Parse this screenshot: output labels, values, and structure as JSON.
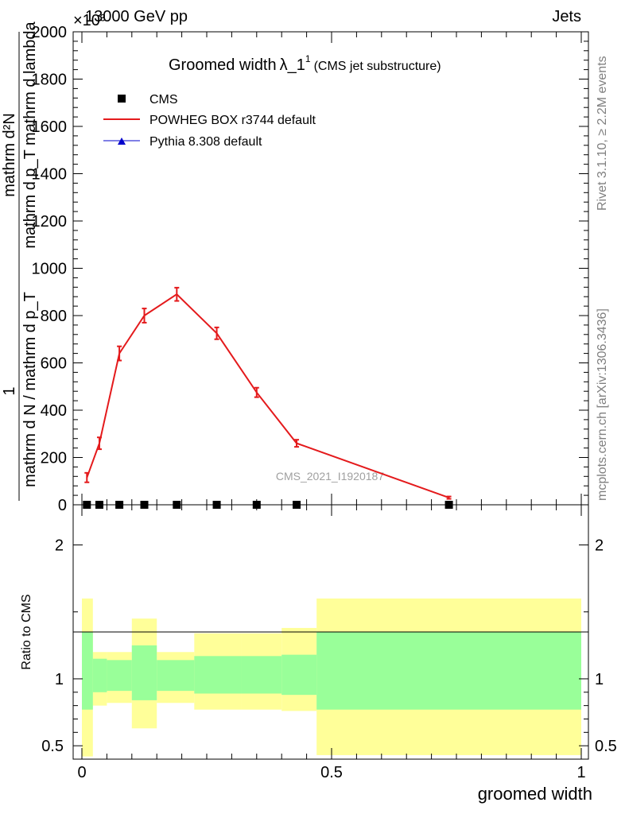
{
  "header": {
    "left": "13000 GeV pp",
    "right": "Jets",
    "exponent": "×10³"
  },
  "side": {
    "rivet": "Rivet 3.1.10, ≥ 2.2M events",
    "mcplots": "mcplots.cern.ch [arXiv:1306.3436]"
  },
  "watermark": "CMS_2021_I1920187",
  "chart_data": [
    {
      "type": "line",
      "title_main": "Groomed width",
      "title_lambda": "λ_1",
      "title_sup": "1",
      "title_sub": "(CMS jet substructure)",
      "ylabel_top": "1",
      "ylabel_num": "mathrm d²N",
      "ylabel_num2": "mathrm d p_T mathrm d lambda",
      "ylabel_den": "mathrm d N / mathrm d p_T",
      "xlim": [
        0,
        1
      ],
      "ylim": [
        0,
        2000
      ],
      "yticks": [
        "0",
        "200",
        "400",
        "600",
        "800",
        "1000",
        "1200",
        "1400",
        "1600",
        "1800",
        "2000"
      ],
      "legend": [
        {
          "name": "CMS",
          "color": "#000000",
          "marker": "square"
        },
        {
          "name": "POWHEG BOX r3744 default",
          "color": "#e41a1c",
          "marker": "line"
        },
        {
          "name": "Pythia 8.308 default",
          "color": "#0000cc",
          "marker": "triangle"
        }
      ],
      "series": [
        {
          "name": "CMS",
          "x": [
            0.01,
            0.035,
            0.075,
            0.125,
            0.19,
            0.27,
            0.35,
            0.43,
            0.735
          ],
          "y": [
            0,
            0,
            0,
            0,
            0,
            0,
            0,
            0,
            0
          ]
        },
        {
          "name": "POWHEG BOX r3744 default",
          "x": [
            0.01,
            0.035,
            0.075,
            0.125,
            0.19,
            0.27,
            0.35,
            0.43,
            0.735
          ],
          "y": [
            115,
            260,
            640,
            800,
            890,
            725,
            475,
            260,
            30
          ],
          "err": [
            20,
            25,
            30,
            30,
            28,
            25,
            20,
            15,
            5
          ]
        }
      ]
    },
    {
      "type": "area",
      "ylabel": "Ratio to CMS",
      "xlabel": "groomed width",
      "xlim": [
        0,
        1
      ],
      "ylim": [
        0.4,
        2.3
      ],
      "yticks": [
        "0.5",
        "1",
        "2"
      ],
      "xticks": [
        "0",
        "0.5",
        "1"
      ],
      "bins": [
        {
          "x0": 0.0,
          "x1": 0.022,
          "y_lo": 0.42,
          "y_hi": 1.6,
          "g_lo": 0.77,
          "g_hi": 1.35
        },
        {
          "x0": 0.022,
          "x1": 0.05,
          "y_lo": 0.8,
          "y_hi": 1.2,
          "g_lo": 0.9,
          "g_hi": 1.15
        },
        {
          "x0": 0.05,
          "x1": 0.1,
          "y_lo": 0.82,
          "y_hi": 1.2,
          "g_lo": 0.91,
          "g_hi": 1.14
        },
        {
          "x0": 0.1,
          "x1": 0.15,
          "y_lo": 0.63,
          "y_hi": 1.45,
          "g_lo": 0.84,
          "g_hi": 1.25
        },
        {
          "x0": 0.15,
          "x1": 0.225,
          "y_lo": 0.82,
          "y_hi": 1.2,
          "g_lo": 0.91,
          "g_hi": 1.14
        },
        {
          "x0": 0.225,
          "x1": 0.32,
          "y_lo": 0.77,
          "y_hi": 1.34,
          "g_lo": 0.89,
          "g_hi": 1.17
        },
        {
          "x0": 0.32,
          "x1": 0.4,
          "y_lo": 0.77,
          "y_hi": 1.34,
          "g_lo": 0.89,
          "g_hi": 1.17
        },
        {
          "x0": 0.4,
          "x1": 0.47,
          "y_lo": 0.76,
          "y_hi": 1.38,
          "g_lo": 0.88,
          "g_hi": 1.18
        },
        {
          "x0": 0.47,
          "x1": 1.0,
          "y_lo": 0.43,
          "y_hi": 1.6,
          "g_lo": 0.77,
          "g_hi": 1.35
        }
      ],
      "colors": {
        "yellow": "#ffff99",
        "green": "#99ff99"
      }
    }
  ]
}
